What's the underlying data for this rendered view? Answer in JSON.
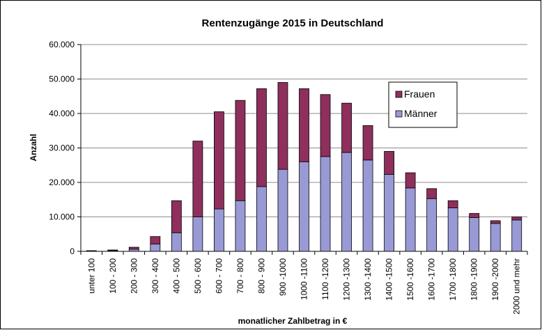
{
  "chart_data": {
    "type": "stacked_bar",
    "title": "Rentenzugänge 2015 in Deutschland",
    "xlabel": "monatlicher Zahlbetrag in €",
    "ylabel": "Anzahl",
    "categories": [
      "unter 100",
      "100 - 200",
      "200 - 300",
      "300 - 400",
      "400 - 500",
      "500 - 600",
      "600 - 700",
      "700 - 800",
      "800 - 900",
      "900 -1000",
      "1000 -1100",
      "1100 -1200",
      "1200 -1300",
      "1300 -1400",
      "1400 -1500",
      "1500 -1600",
      "1600 -1700",
      "1700 -1800",
      "1800 -1900",
      "1900 -2000",
      "2000 und mehr"
    ],
    "series": [
      {
        "name": "Männer",
        "color": "#9999d6",
        "values": [
          100,
          200,
          600,
          2100,
          5400,
          10000,
          12300,
          14700,
          18800,
          23800,
          26000,
          27500,
          28700,
          26500,
          22300,
          18400,
          15300,
          12600,
          9800,
          8100,
          9100
        ]
      },
      {
        "name": "Frauen",
        "color": "#8e2f5c",
        "values": [
          100,
          200,
          600,
          2200,
          9300,
          22000,
          28200,
          29100,
          28400,
          25200,
          21200,
          18000,
          14300,
          10000,
          6700,
          4400,
          2900,
          2100,
          1200,
          800,
          900
        ]
      }
    ],
    "ylim": [
      0,
      60000
    ],
    "yticks": [
      0,
      {
        "value": 10000,
        "label": "10.000"
      },
      {
        "value": 20000,
        "label": "20.000"
      },
      {
        "value": 30000,
        "label": "30.000"
      },
      {
        "value": 40000,
        "label": "40.000"
      },
      {
        "value": 50000,
        "label": "50.000"
      },
      {
        "value": 60000,
        "label": "60.000"
      }
    ],
    "grid": true,
    "legend": "upper right"
  }
}
